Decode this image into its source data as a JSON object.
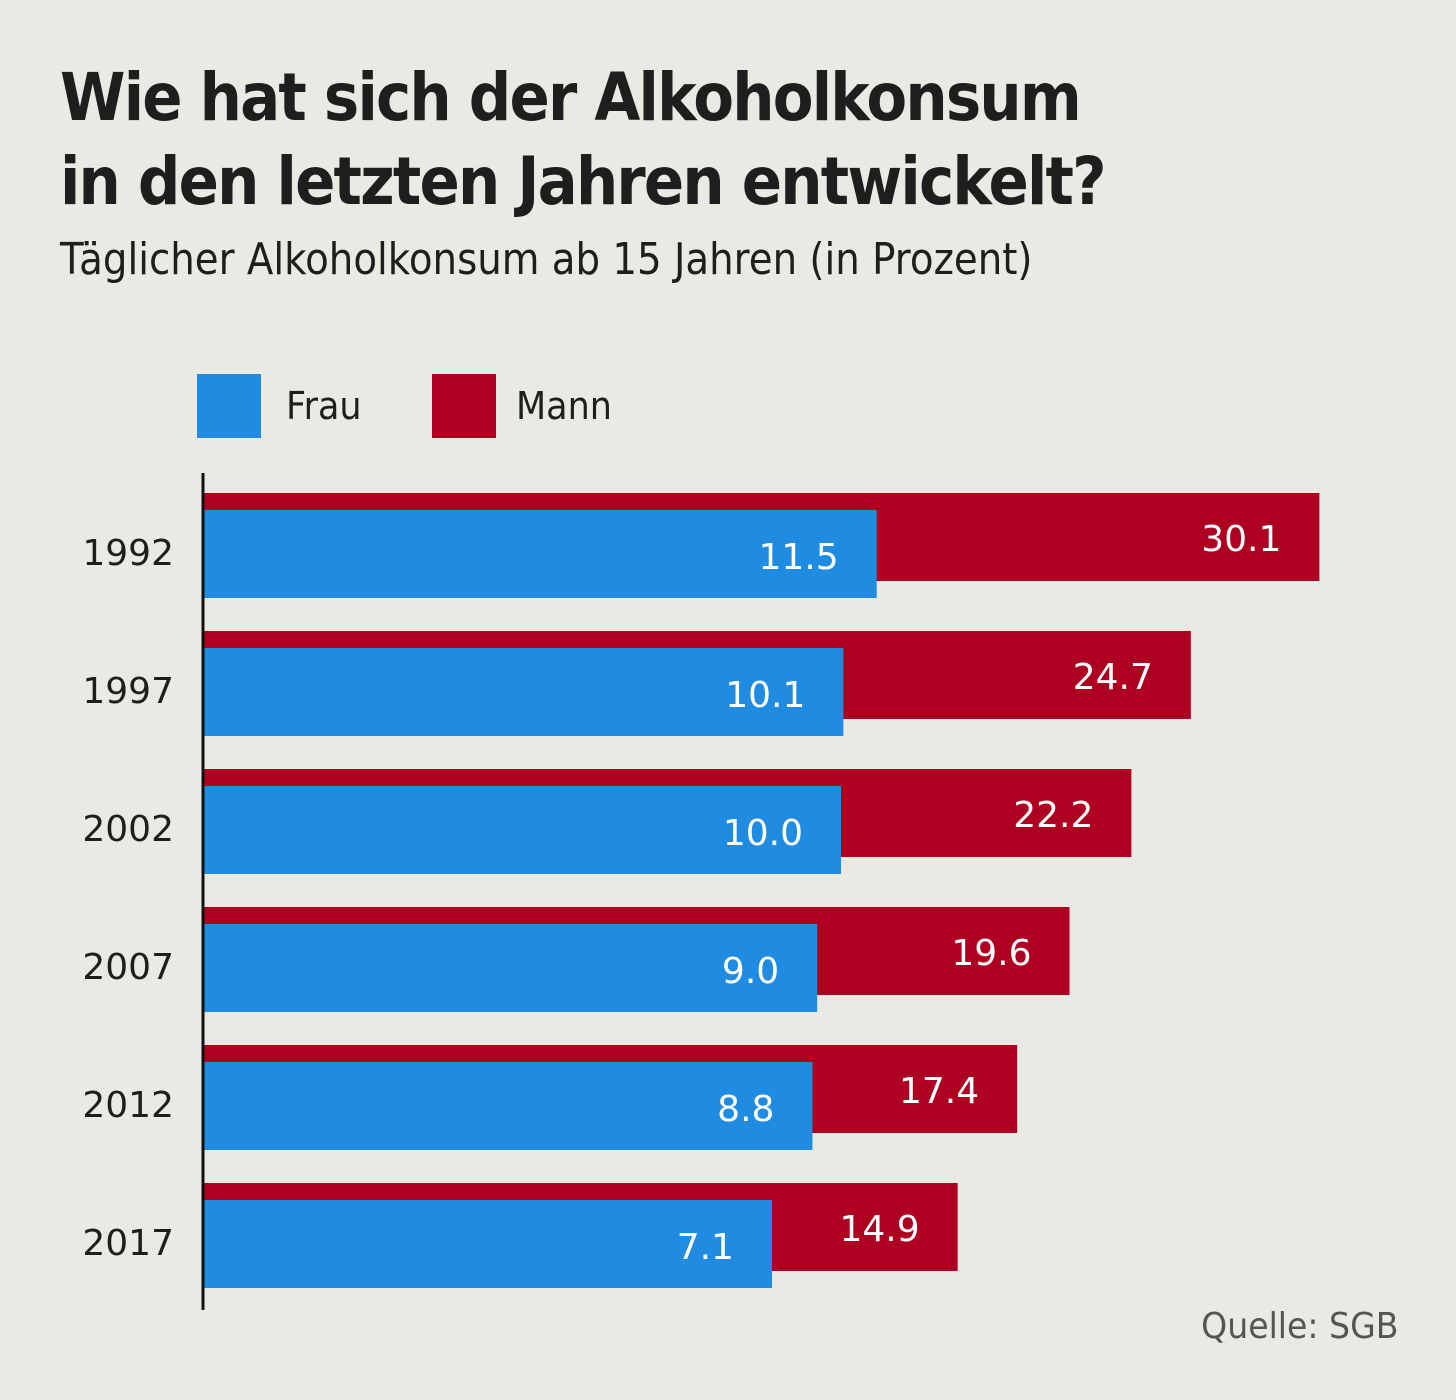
{
  "title_line1": "Wie hat sich der Alkoholkonsum",
  "title_line2": "in den letzten Jahren entwickelt?",
  "subtitle": "Täglicher Alkoholkonsum ab 15 Jahren (in Prozent)",
  "source": "Quelle: SGB",
  "colors": {
    "frau": "#1f8ce2",
    "mann": "#ae0020",
    "background": "#eaeae5",
    "text": "#1e1e1e"
  },
  "chart_data": {
    "type": "bar",
    "orientation": "horizontal",
    "title": "Wie hat sich der Alkoholkonsum in den letzten Jahren entwickelt?",
    "subtitle": "Täglicher Alkoholkonsum ab 15 Jahren (in Prozent)",
    "xlabel": "",
    "ylabel": "",
    "legend_position": "top-left",
    "grid": false,
    "categories": [
      "1992",
      "1997",
      "2002",
      "2007",
      "2012",
      "2017"
    ],
    "series": [
      {
        "name": "Frau",
        "color": "#1f8ce2",
        "values": [
          11.5,
          10.1,
          10.0,
          9.0,
          8.8,
          7.1
        ],
        "labels": [
          "11.5",
          "10.1",
          "10.0",
          "9.0",
          "8.8",
          "7.1"
        ]
      },
      {
        "name": "Mann",
        "color": "#ae0020",
        "values": [
          30.1,
          24.7,
          22.2,
          19.6,
          17.4,
          14.9
        ],
        "labels": [
          "30.1",
          "24.7",
          "22.2",
          "19.6",
          "17.4",
          "14.9"
        ]
      }
    ]
  }
}
